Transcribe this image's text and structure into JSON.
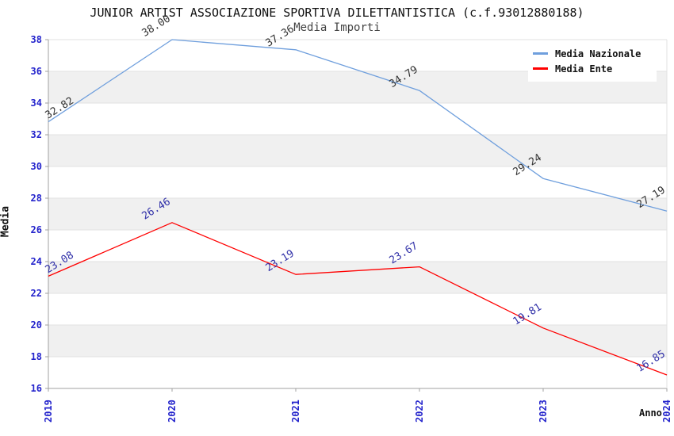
{
  "title": "JUNIOR ARTIST ASSOCIAZIONE SPORTIVA DILETTANTISTICA (c.f.93012880188)",
  "subtitle": "Media Importi",
  "chart_data": {
    "type": "line",
    "categories": [
      "2019",
      "2020",
      "2021",
      "2022",
      "2023",
      "2024"
    ],
    "series": [
      {
        "name": "Media Nazionale",
        "color": "#6f9fdd",
        "label_color": "#333333",
        "values": [
          32.82,
          38.0,
          37.36,
          34.79,
          29.24,
          27.19
        ]
      },
      {
        "name": "Media Ente",
        "color": "#ff0000",
        "label_color": "#3030a8",
        "values": [
          23.08,
          26.46,
          23.19,
          23.67,
          19.81,
          16.85
        ]
      }
    ],
    "xlabel": "Anno",
    "ylabel": "Media",
    "ylim": [
      16,
      38
    ],
    "ytick_step": 2,
    "grid": true,
    "legend_position": "top-right",
    "colors": {
      "tick_label": "#2424cc",
      "band": "#f0f0f0",
      "gridline": "#e2e2e2",
      "spine": "#a0a0a0",
      "title": "#111111",
      "subtitle": "#444444"
    },
    "value_label_rotation_deg": -32,
    "value_label_decimals": 2
  }
}
